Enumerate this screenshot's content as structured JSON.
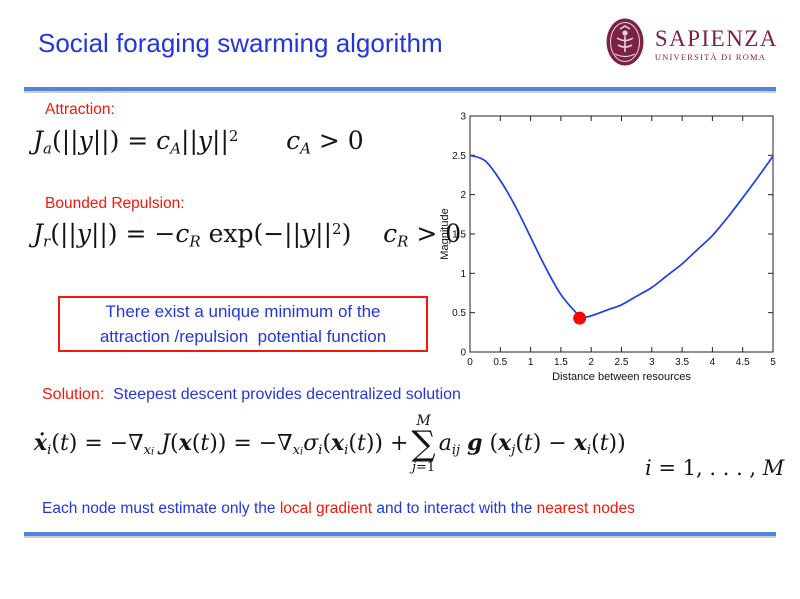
{
  "slide": {
    "title": "Social foraging swarming algorithm"
  },
  "logo": {
    "name": "SAPIENZA",
    "subtitle": "UNIVERSITÀ DI ROMA",
    "emblem": "sapienza-cherub-seal",
    "color": "#7b2144"
  },
  "colors": {
    "title_blue": "#2336de",
    "text_blue": "#2336de",
    "accent_red": "#f71608",
    "rule_blue": "#5585d6",
    "curve_blue": "#1d3de8",
    "marker_red": "#f50800"
  },
  "labels": {
    "attraction": "Attraction:",
    "repulsion": "Bounded Repulsion:",
    "solution": "Solution:",
    "solution_text": "  Steepest descent provides decentralized solution"
  },
  "minimum_box": {
    "line1": "There exist a unique minimum of the",
    "line2": "attraction /repulsion  potential function"
  },
  "footer_parts": [
    {
      "text": "Each node must estimate only the ",
      "color": "#2336de"
    },
    {
      "text": "local gradient",
      "color": "#f71608"
    },
    {
      "text": " and to interact with the ",
      "color": "#2336de"
    },
    {
      "text": "nearest nodes",
      "color": "#f71608"
    }
  ],
  "formulas": {
    "attraction": [
      [
        "J",
        "i"
      ],
      [
        "a",
        "sub"
      ],
      [
        "(||",
        "n"
      ],
      [
        "y",
        "i"
      ],
      [
        "||) = ",
        "n"
      ],
      [
        "c",
        "i"
      ],
      [
        "A",
        "sub"
      ],
      [
        "||",
        "n"
      ],
      [
        "y",
        "i"
      ],
      [
        "||",
        "n"
      ],
      [
        "2",
        "sup"
      ],
      [
        "      ",
        "n"
      ],
      [
        "c",
        "i"
      ],
      [
        "A",
        "sub"
      ],
      [
        " > 0",
        "n"
      ]
    ],
    "repulsion": [
      [
        "J",
        "i"
      ],
      [
        "r",
        "sub"
      ],
      [
        "(||",
        "n"
      ],
      [
        "y",
        "i"
      ],
      [
        "||) = −",
        "n"
      ],
      [
        "c",
        "i"
      ],
      [
        "R",
        "sub"
      ],
      [
        " exp(−||",
        "n"
      ],
      [
        "y",
        "i"
      ],
      [
        "||",
        "n"
      ],
      [
        "2",
        "sup"
      ],
      [
        ")",
        "n"
      ],
      [
        "    ",
        "n"
      ],
      [
        "c",
        "i"
      ],
      [
        "R",
        "sub"
      ],
      [
        " > 0",
        "n"
      ]
    ],
    "descent_left": [
      [
        "ẋ",
        "bi"
      ],
      [
        "i",
        "sub"
      ],
      [
        "(",
        "n"
      ],
      [
        "t",
        "i"
      ],
      [
        ") = −∇",
        "n"
      ],
      [
        "x",
        "sub"
      ],
      [
        "i",
        "subsub"
      ],
      [
        " ",
        "n"
      ],
      [
        "J",
        "i"
      ],
      [
        "(",
        "n"
      ],
      [
        "x",
        "bi"
      ],
      [
        "(",
        "n"
      ],
      [
        "t",
        "i"
      ],
      [
        ")) = −∇",
        "n"
      ],
      [
        "x",
        "sub"
      ],
      [
        "i",
        "subsub"
      ],
      [
        "σ",
        "i"
      ],
      [
        "i",
        "sub"
      ],
      [
        "(",
        "n"
      ],
      [
        "x",
        "bi"
      ],
      [
        "i",
        "sub"
      ],
      [
        "(",
        "n"
      ],
      [
        "t",
        "i"
      ],
      [
        ")) + ",
        "n"
      ]
    ],
    "sum": {
      "top": "M",
      "symbol": "∑",
      "bottom": [
        [
          "j",
          "i"
        ],
        [
          "=1",
          "n"
        ]
      ]
    },
    "descent_right": [
      [
        "a",
        "i"
      ],
      [
        "ij",
        "sub"
      ],
      [
        " ",
        "n"
      ],
      [
        "g",
        "bi"
      ],
      [
        " (",
        "n"
      ],
      [
        "x",
        "bi"
      ],
      [
        "j",
        "sub"
      ],
      [
        "(",
        "n"
      ],
      [
        "t",
        "i"
      ],
      [
        ") − ",
        "n"
      ],
      [
        "x",
        "bi"
      ],
      [
        "i",
        "sub"
      ],
      [
        "(",
        "n"
      ],
      [
        "t",
        "i"
      ],
      [
        "))",
        "n"
      ]
    ],
    "index_range": [
      [
        "i",
        "i"
      ],
      [
        " = 1",
        "n"
      ],
      [
        ", . . . , ",
        "n"
      ],
      [
        "M",
        "i"
      ]
    ]
  },
  "chart_data": {
    "type": "line",
    "title": "",
    "xlabel": "Distance between resources",
    "ylabel": "Magnitude",
    "xlim": [
      0,
      5
    ],
    "ylim": [
      0,
      3
    ],
    "xticks": [
      0,
      0.5,
      1,
      1.5,
      2,
      2.5,
      3,
      3.5,
      4,
      4.5,
      5
    ],
    "yticks": [
      0,
      0.5,
      1,
      1.5,
      2,
      2.5,
      3
    ],
    "grid": false,
    "legend_position": "none",
    "series": [
      {
        "name": "attraction-repulsion potential",
        "color": "#1d3de8",
        "x": [
          0,
          0.25,
          0.5,
          0.75,
          1.0,
          1.25,
          1.5,
          1.75,
          1.85,
          2.0,
          2.25,
          2.5,
          2.75,
          3.0,
          3.25,
          3.5,
          3.75,
          4.0,
          4.25,
          4.5,
          4.75,
          5.0
        ],
        "y": [
          2.5,
          2.43,
          2.18,
          1.85,
          1.46,
          1.07,
          0.73,
          0.5,
          0.44,
          0.46,
          0.53,
          0.6,
          0.71,
          0.82,
          0.97,
          1.12,
          1.3,
          1.48,
          1.71,
          1.96,
          2.22,
          2.49
        ]
      }
    ],
    "marker": {
      "x": 1.81,
      "y": 0.43,
      "color": "#f50800",
      "meaning": "unique minimum of potential"
    }
  }
}
